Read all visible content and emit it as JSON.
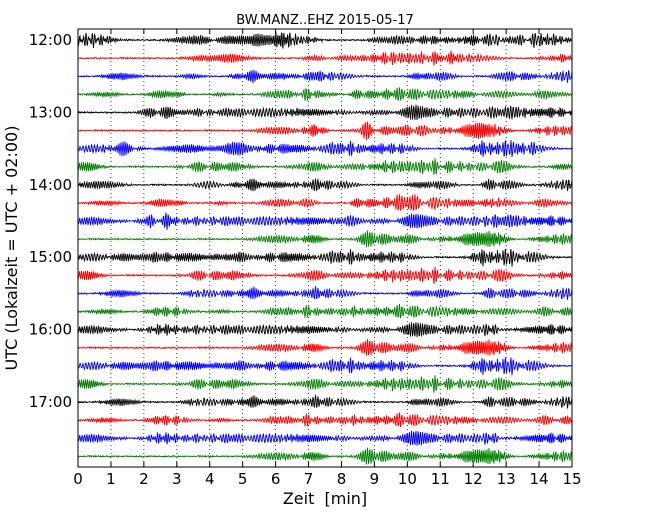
{
  "chart_data": {
    "type": "line",
    "title": "BW.MANZ..EHZ 2015-05-17",
    "xlabel": "Zeit  [min]",
    "ylabel": "UTC (Lokalzeit = UTC + 02:00)",
    "xlim": [
      0,
      15
    ],
    "x_ticks": [
      0,
      1,
      2,
      3,
      4,
      5,
      6,
      7,
      8,
      9,
      10,
      11,
      12,
      13,
      14,
      15
    ],
    "y_tick_labels": [
      "12:00",
      "13:00",
      "14:00",
      "15:00",
      "16:00",
      "17:00"
    ],
    "y_tick_trace_index": [
      0,
      4,
      8,
      12,
      16,
      20
    ],
    "trace_count": 24,
    "trace_duration_min": 15,
    "trace_start_times": [
      "12:00",
      "12:15",
      "12:30",
      "12:45",
      "13:00",
      "13:15",
      "13:30",
      "13:45",
      "14:00",
      "14:15",
      "14:30",
      "14:45",
      "15:00",
      "15:15",
      "15:30",
      "15:45",
      "16:00",
      "16:15",
      "16:30",
      "16:45",
      "17:00",
      "17:15",
      "17:30",
      "17:45"
    ],
    "trace_colors": [
      "#000000",
      "#ff0000",
      "#0000ff",
      "#008000"
    ],
    "grid": "vertical dotted lines at each minute",
    "signal": "continuous seismic noise, no prominent events"
  }
}
